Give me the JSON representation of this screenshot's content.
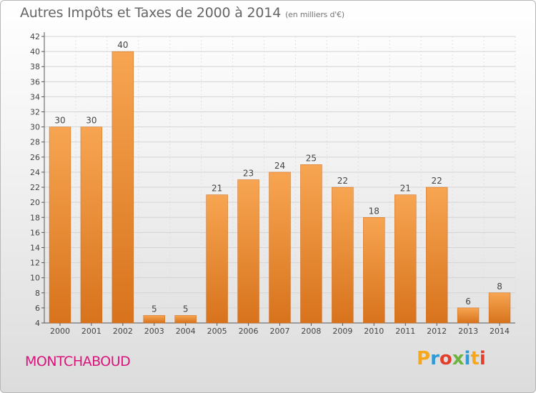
{
  "header": {
    "title": "Autres Impôts et Taxes de 2000 à 2014",
    "subtitle": "(en milliers d'€)"
  },
  "footer": {
    "place": "MONTCHABOUD",
    "brand_letters": [
      "P",
      "r",
      "o",
      "x",
      "i",
      "t",
      "i"
    ],
    "brand_colors": [
      "#f7a71b",
      "#2e9ad6",
      "#e23e2b",
      "#6cb33f",
      "#2e9ad6",
      "#f7a71b",
      "#e23e2b"
    ]
  },
  "colors": {
    "bar_top": "#f7a552",
    "bar_bottom": "#d8731c",
    "place": "#d9157b"
  },
  "chart_data": {
    "type": "bar",
    "title": "Autres Impôts et Taxes de 2000 à 2014",
    "subtitle": "(en milliers d'€)",
    "categories": [
      "2000",
      "2001",
      "2002",
      "2003",
      "2004",
      "2005",
      "2006",
      "2007",
      "2008",
      "2009",
      "2010",
      "2011",
      "2012",
      "2013",
      "2014"
    ],
    "values": [
      30,
      30,
      40,
      5,
      5,
      21,
      23,
      24,
      25,
      22,
      18,
      21,
      22,
      6,
      8
    ],
    "ylim": [
      4,
      42
    ],
    "yticks": [
      4,
      6,
      8,
      10,
      12,
      14,
      16,
      18,
      20,
      22,
      24,
      26,
      28,
      30,
      32,
      34,
      36,
      38,
      40,
      42
    ],
    "grid": true,
    "xlabel": "",
    "ylabel": ""
  }
}
